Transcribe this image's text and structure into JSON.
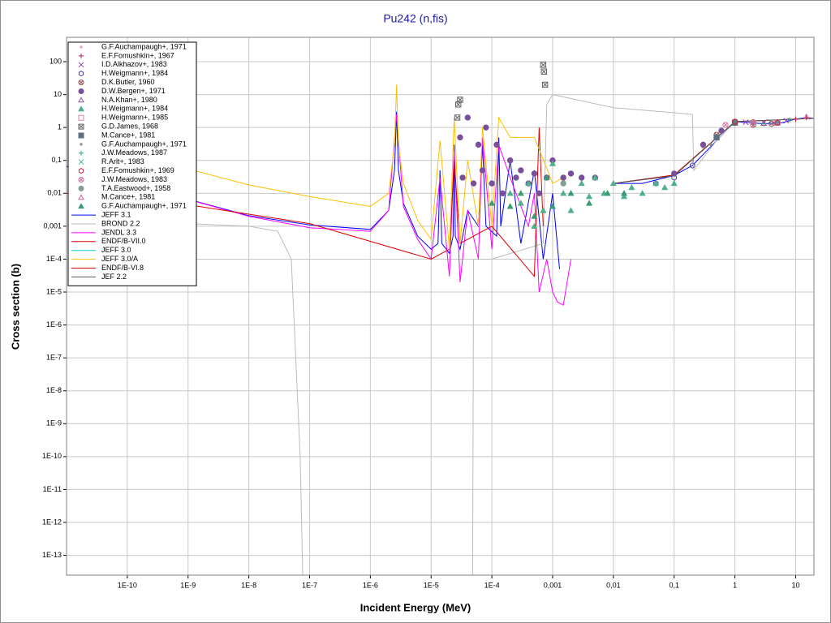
{
  "chart_data": {
    "type": "line",
    "title": "Pu242 (n,fis)",
    "x_label": "Incident Energy (MeV)",
    "y_label": "Cross section (b)",
    "xscale": "log",
    "yscale": "log",
    "grid": true,
    "xlim": [
      1e-11,
      20
    ],
    "ylim": [
      2.5e-14,
      550
    ],
    "xticks": [
      {
        "value": 1e-10,
        "label": "1E-10"
      },
      {
        "value": 1e-09,
        "label": "1E-9"
      },
      {
        "value": 1e-08,
        "label": "1E-8"
      },
      {
        "value": 1e-07,
        "label": "1E-7"
      },
      {
        "value": 1e-06,
        "label": "1E-6"
      },
      {
        "value": 1e-05,
        "label": "1E-5"
      },
      {
        "value": 0.0001,
        "label": "1E-4"
      },
      {
        "value": 0.001,
        "label": "0,001"
      },
      {
        "value": 0.01,
        "label": "0,01"
      },
      {
        "value": 0.1,
        "label": "0,1"
      },
      1,
      10
    ],
    "yticks": [
      {
        "value": 1e-13,
        "label": "1E-13"
      },
      {
        "value": 1e-12,
        "label": "1E-12"
      },
      {
        "value": 1e-11,
        "label": "1E-11"
      },
      {
        "value": 1e-10,
        "label": "1E-10"
      },
      {
        "value": 1e-09,
        "label": "1E-9"
      },
      {
        "value": 1e-08,
        "label": "1E-8"
      },
      {
        "value": 1e-07,
        "label": "1E-7"
      },
      {
        "value": 1e-06,
        "label": "1E-6"
      },
      {
        "value": 1e-05,
        "label": "1E-5"
      },
      {
        "value": 0.0001,
        "label": "1E-4"
      },
      {
        "value": 0.001,
        "label": "0,001"
      },
      {
        "value": 0.01,
        "label": "0,01"
      },
      {
        "value": 0.1,
        "label": "0,1"
      },
      1,
      10,
      100
    ],
    "series": [
      {
        "name": "G.F.Auchampaugh+, 1971",
        "marker": "dot",
        "color": "#f0a0c8",
        "x": [
          0.3,
          0.5,
          1,
          2,
          5,
          10
        ],
        "values": [
          0.25,
          0.5,
          1.4,
          1.4,
          1.4,
          1.8
        ]
      },
      {
        "name": "E.F.Fomushkin+, 1967",
        "marker": "plus",
        "color": "#c0204a",
        "x": [
          1,
          2,
          5,
          10,
          15
        ],
        "values": [
          1.5,
          1.5,
          1.4,
          1.8,
          2.0
        ]
      },
      {
        "name": "I.D.Alkhazov+, 1983",
        "marker": "cross",
        "color": "#9040b0",
        "x": [
          1.5,
          3,
          7
        ],
        "values": [
          1.45,
          1.4,
          1.6
        ]
      },
      {
        "name": "H.Weigmann+, 1984",
        "marker": "hexagon",
        "color": "#5040b0",
        "x": [
          0.05,
          0.1,
          0.2
        ],
        "values": [
          0.02,
          0.03,
          0.07
        ]
      },
      {
        "name": "D.K.Butler, 1960",
        "marker": "circle-x",
        "color": "#905050",
        "x": [
          0.5,
          1,
          2,
          4
        ],
        "values": [
          0.6,
          1.5,
          1.2,
          1.3
        ]
      },
      {
        "name": "D.W.Bergen+, 1971",
        "marker": "circle",
        "color": "#7a4f9a",
        "x": [
          3e-05,
          3.3e-05,
          4e-05,
          5e-05,
          6e-05,
          7e-05,
          8e-05,
          0.0001,
          0.00012,
          0.00015,
          0.0002,
          0.00025,
          0.0003,
          0.0004,
          0.0005,
          0.0006,
          0.0008,
          0.001,
          0.0015,
          0.002,
          0.003,
          0.005,
          0.1,
          0.3,
          0.6,
          1
        ],
        "values": [
          0.5,
          0.03,
          2,
          0.02,
          0.3,
          0.05,
          1,
          0.02,
          0.3,
          0.01,
          0.1,
          0.03,
          0.05,
          0.02,
          0.04,
          0.01,
          0.03,
          0.1,
          0.03,
          0.04,
          0.03,
          0.03,
          0.04,
          0.3,
          0.8,
          1.4
        ]
      },
      {
        "name": "N.A.Khan+, 1980",
        "marker": "triangle",
        "color": "#9050a0",
        "x": [
          1,
          3,
          5
        ],
        "values": [
          1.5,
          1.35,
          1.4
        ]
      },
      {
        "name": "H.Weigmann+, 1984",
        "marker": "triangle-filled",
        "color": "#4fb08c",
        "x": [
          0.0002,
          0.0003,
          0.0004,
          0.0005,
          0.0007,
          0.001,
          0.0015,
          0.002,
          0.003,
          0.004,
          0.005,
          0.007,
          0.01,
          0.015,
          0.02,
          0.03,
          0.05,
          0.07,
          0.1
        ],
        "values": [
          0.01,
          0.005,
          0.02,
          0.001,
          0.003,
          0.08,
          0.01,
          0.003,
          0.02,
          0.008,
          0.03,
          0.01,
          0.02,
          0.008,
          0.015,
          0.01,
          0.02,
          0.015,
          0.02
        ]
      },
      {
        "name": "H.Weigmann+, 1985",
        "marker": "square",
        "color": "#e080a0",
        "x": [
          2,
          5
        ],
        "values": [
          1.3,
          1.4
        ]
      },
      {
        "name": "G.D.James, 1968",
        "marker": "square-x",
        "color": "#606060",
        "x": [
          2.7e-05,
          2.8e-05,
          3e-05,
          0.0007,
          0.00072,
          0.00075
        ],
        "values": [
          2,
          5,
          7,
          80,
          50,
          20
        ]
      },
      {
        "name": "M.Cance+, 1981",
        "marker": "square-filled",
        "color": "#607080",
        "x": [
          0.5,
          1
        ],
        "values": [
          0.5,
          1.4
        ]
      },
      {
        "name": "G.F.Auchampaugh+, 1971",
        "marker": "dot",
        "color": "#909090",
        "x": [
          0.2,
          0.4
        ],
        "values": [
          0.1,
          0.3
        ]
      },
      {
        "name": "J.W.Meadows, 1987",
        "marker": "plus",
        "color": "#30a080",
        "x": [
          1,
          3,
          8
        ],
        "values": [
          1.5,
          1.3,
          1.7
        ]
      },
      {
        "name": "R.Arlt+, 1983",
        "marker": "cross",
        "color": "#40b0a0",
        "x": [
          2,
          5
        ],
        "values": [
          1.4,
          1.45
        ]
      },
      {
        "name": "E.F.Fomushkin+, 1969",
        "marker": "hexagon",
        "color": "#d02040",
        "x": [
          1,
          5
        ],
        "values": [
          1.5,
          1.4
        ]
      },
      {
        "name": "J.W.Meadows, 1983",
        "marker": "circle-x",
        "color": "#d070a0",
        "x": [
          0.7,
          2
        ],
        "values": [
          1.2,
          1.45
        ]
      },
      {
        "name": "T.A.Eastwood+, 1958",
        "marker": "circle",
        "color": "#80a090",
        "x": [
          0.0015
        ],
        "values": [
          0.02
        ]
      },
      {
        "name": "M.Cance+, 1981",
        "marker": "triangle",
        "color": "#d060a0",
        "x": [
          15
        ],
        "values": [
          2.1
        ]
      },
      {
        "name": "G.F.Auchampaugh+, 1971",
        "marker": "triangle-filled",
        "color": "#3a9c70",
        "x": [
          0.0001,
          0.0002,
          0.0003,
          0.0005,
          0.0008,
          0.001,
          0.002,
          0.004,
          0.008,
          0.015
        ],
        "values": [
          0.005,
          0.004,
          0.01,
          0.002,
          0.03,
          0.004,
          0.01,
          0.005,
          0.01,
          0.01
        ]
      },
      {
        "name": "JEFF 3.1",
        "color": "#0000ff",
        "x": [
          1e-11,
          1e-10,
          1e-09,
          1e-08,
          1e-07,
          1e-06,
          2e-06,
          2.5e-06,
          2.7e-06,
          2.9e-06,
          3.5e-06,
          6e-06,
          1e-05,
          1.3e-05,
          1.4e-05,
          1.5e-05,
          2e-05,
          2.3e-05,
          2.4e-05,
          2.5e-05,
          3e-05,
          4e-05,
          6e-05,
          7e-05,
          8e-05,
          0.00012,
          0.00013,
          0.00014,
          0.0002,
          0.0003,
          0.0005,
          0.0007,
          0.001,
          0.0013,
          0.005,
          0.01,
          0.03,
          0.1,
          0.2,
          0.5,
          1,
          3,
          6,
          10,
          15,
          20
        ],
        "values": [
          0.066,
          0.021,
          0.0066,
          0.0021,
          0.0011,
          0.0008,
          0.003,
          0.05,
          3,
          0.05,
          0.005,
          0.0005,
          0.0002,
          0.0003,
          0.05,
          0.0003,
          0.00015,
          0.0005,
          0.3,
          0.0005,
          0.0002,
          0.003,
          0.001,
          0.3,
          0.001,
          0.0005,
          0.5,
          0.001,
          0.1,
          0.0003,
          0.05,
          0.0001,
          0.01,
          5e-05,
          null,
          0.02,
          0.02,
          0.035,
          0.07,
          0.4,
          1.5,
          1.3,
          1.4,
          1.8,
          2.0,
          1.9
        ]
      },
      {
        "name": "BROND 2.2",
        "color": "#bbbbbb",
        "x": [
          1e-09,
          1e-08,
          3e-08,
          5e-08,
          7e-08,
          8e-08,
          4.8e-05,
          5e-05,
          0.0001,
          0.0007,
          0.0008,
          0.001,
          0.01,
          0.1,
          0.2,
          0.21,
          0.5,
          1,
          20
        ],
        "values": [
          0.0012,
          0.001,
          0.0007,
          0.0001,
          1e-10,
          1e-15,
          1e-15,
          0.0001,
          0.0001,
          0.0003,
          5,
          10,
          4,
          2.8,
          2.5,
          0.05,
          0.4,
          1.5,
          1.9
        ]
      },
      {
        "name": "JENDL 3.3",
        "color": "#ff00ff",
        "x": [
          1e-10,
          1e-09,
          1e-08,
          1e-07,
          1e-06,
          2e-06,
          2.7e-06,
          3.5e-06,
          6e-06,
          1e-05,
          1.4e-05,
          2e-05,
          2.4e-05,
          3e-05,
          4e-05,
          6e-05,
          7e-05,
          0.0001,
          0.00013,
          0.0002,
          0.0004,
          0.0005,
          0.0006,
          0.0008,
          0.001,
          0.0012,
          0.0015,
          0.002
        ],
        "values": [
          0.02,
          0.0065,
          0.002,
          0.0009,
          0.0007,
          0.003,
          2.5,
          0.004,
          0.0004,
          0.0001,
          0.03,
          3e-05,
          0.2,
          2e-05,
          0.003,
          0.0001,
          0.5,
          0.0002,
          0.3,
          0.03,
          0.001,
          0.01,
          1e-05,
          0.0001,
          1e-05,
          5e-06,
          4e-06,
          0.0001
        ]
      },
      {
        "name": "ENDF/B-VII.0",
        "color": "#e00000",
        "x": [
          1e-11,
          1e-09,
          1e-07,
          1e-05,
          2e-05,
          2.4e-05,
          3e-05,
          0.0001,
          0.0005,
          0.0006,
          0.0007
        ],
        "values": [
          0.01,
          0.0045,
          0.0012,
          0.0001,
          0.0002,
          0.1,
          0.0003,
          0.001,
          3e-05,
          1,
          0.001
        ]
      },
      {
        "name": "JEFF 3.0",
        "color": "#00cccc",
        "x": [
          0.01,
          0.1,
          1,
          20
        ],
        "values": [
          0.02,
          0.035,
          1.5,
          1.9
        ]
      },
      {
        "name": "JEFF 3.0/A",
        "color": "#ffc000",
        "x": [
          1e-10,
          1e-09,
          1e-08,
          1e-07,
          1e-06,
          2e-06,
          2.5e-06,
          2.7e-06,
          2.9e-06,
          3.5e-06,
          6e-06,
          1e-05,
          1.4e-05,
          2e-05,
          2.4e-05,
          3e-05,
          4e-05,
          6e-05,
          7e-05,
          0.0001,
          0.00013,
          0.0002,
          0.0005,
          0.001,
          0.0015
        ],
        "values": [
          0.17,
          0.055,
          0.018,
          0.008,
          0.004,
          0.01,
          0.3,
          20,
          0.3,
          0.02,
          0.0015,
          0.0004,
          0.4,
          0.0002,
          2,
          0.0003,
          0.1,
          0.001,
          1,
          0.001,
          2,
          0.5,
          0.5,
          0.02,
          0.03
        ]
      },
      {
        "name": "ENDF/B-VI.8",
        "color": "#cc0000",
        "x": [
          0.01,
          0.1,
          1,
          20
        ],
        "values": [
          0.02,
          0.036,
          1.5,
          1.9
        ]
      },
      {
        "name": "JEF 2.2",
        "color": "#555555",
        "x": [
          0.01,
          0.1,
          1,
          20
        ],
        "values": [
          0.02,
          0.034,
          1.5,
          1.9
        ]
      }
    ]
  }
}
